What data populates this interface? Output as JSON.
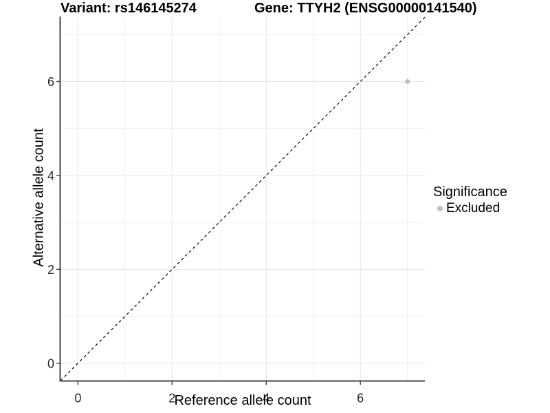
{
  "chart_data": {
    "type": "scatter",
    "title_left": "Variant: rs146145274",
    "title_right": "Gene: TTYH2 (ENSG00000141540)",
    "xlabel": "Reference allele count",
    "ylabel": "Alternative allele count",
    "xlim": [
      -0.37,
      7.37
    ],
    "ylim": [
      -0.37,
      7.37
    ],
    "x_major_ticks": [
      0,
      2,
      4,
      6
    ],
    "y_major_ticks": [
      0,
      2,
      4,
      6
    ],
    "x_minor_gridlines": [
      1,
      3,
      5,
      7
    ],
    "y_minor_gridlines": [
      1,
      3,
      5,
      7
    ],
    "grid": "major and minor gridlines, white panel background",
    "legend_position": "right",
    "series": [
      {
        "name": "Excluded",
        "color": "#bdbdbd",
        "points": [
          {
            "x": 7,
            "y": 6
          }
        ]
      }
    ],
    "reference_line": {
      "kind": "identity",
      "slope": 1,
      "intercept": 0,
      "linetype": "dashed",
      "color": "#000000"
    },
    "legend": {
      "title": "Significance",
      "items": [
        {
          "label": "Excluded",
          "color": "#bdbdbd"
        }
      ]
    }
  },
  "colors": {
    "background": "#ffffff",
    "grid_major": "#e3e3e3",
    "grid_minor": "#eeeeee",
    "axis_line": "#474747",
    "tick_label": "#262626",
    "title_text": "#000000"
  }
}
